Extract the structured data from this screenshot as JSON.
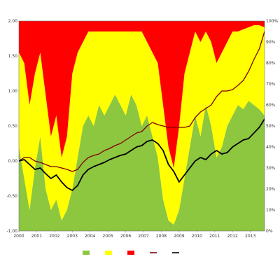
{
  "chart_data": {
    "type": "area",
    "title": "",
    "xlabel": "",
    "ylabel": "",
    "x_ticks": [
      "2000",
      "2001",
      "2002",
      "2003",
      "2004",
      "2005",
      "2006",
      "2007",
      "2008",
      "2009",
      "2010",
      "2011",
      "2012",
      "2013"
    ],
    "x_range": [
      2000.0,
      2013.8
    ],
    "y_left": {
      "range": [
        -1.0,
        2.0
      ],
      "ticks": [
        "-1.00",
        "-0.50",
        "0.00",
        "0.50",
        "1.00",
        "1.50",
        "2.00"
      ]
    },
    "y_right": {
      "range": [
        0,
        100
      ],
      "ticks": [
        "0%",
        "10%",
        "20%",
        "30%",
        "40%",
        "50%",
        "60%",
        "70%",
        "80%",
        "90%",
        "100%"
      ]
    },
    "grid": false,
    "legend_position": "bottom",
    "stacked_probability_regimes": {
      "note_axis": "right",
      "x": [
        2000.0,
        2000.3,
        2000.6,
        2000.9,
        2001.2,
        2001.5,
        2001.8,
        2002.1,
        2002.4,
        2002.7,
        2003.0,
        2003.3,
        2003.6,
        2003.9,
        2004.2,
        2004.5,
        2004.8,
        2005.1,
        2005.4,
        2005.7,
        2006.0,
        2006.3,
        2006.6,
        2006.9,
        2007.2,
        2007.5,
        2007.8,
        2008.1,
        2008.4,
        2008.7,
        2009.0,
        2009.3,
        2009.6,
        2009.9,
        2010.2,
        2010.5,
        2010.8,
        2011.1,
        2011.4,
        2011.7,
        2012.0,
        2012.3,
        2012.6,
        2012.9,
        2013.2,
        2013.5,
        2013.8
      ],
      "state1": [
        40,
        25,
        10,
        30,
        45,
        20,
        10,
        15,
        5,
        10,
        20,
        35,
        50,
        55,
        50,
        60,
        55,
        60,
        65,
        60,
        55,
        65,
        60,
        50,
        55,
        45,
        35,
        15,
        5,
        3,
        10,
        25,
        40,
        55,
        45,
        60,
        50,
        35,
        40,
        50,
        55,
        60,
        58,
        62,
        60,
        58,
        55
      ],
      "state2": [
        45,
        55,
        50,
        45,
        40,
        45,
        35,
        40,
        30,
        35,
        55,
        50,
        40,
        40,
        45,
        35,
        40,
        35,
        30,
        35,
        40,
        30,
        35,
        45,
        35,
        40,
        45,
        45,
        35,
        27,
        40,
        50,
        45,
        40,
        45,
        35,
        40,
        45,
        45,
        40,
        40,
        35,
        38,
        35,
        38,
        40,
        42
      ],
      "state3": [
        15,
        20,
        40,
        25,
        15,
        35,
        55,
        45,
        65,
        55,
        25,
        15,
        10,
        5,
        5,
        5,
        5,
        5,
        5,
        5,
        5,
        5,
        5,
        5,
        10,
        15,
        20,
        40,
        60,
        70,
        50,
        25,
        15,
        5,
        10,
        5,
        10,
        20,
        15,
        10,
        5,
        5,
        4,
        3,
        2,
        2,
        3
      ]
    },
    "series": [
      {
        "name": "",
        "axis": "left",
        "color": "#800000",
        "x": [
          2000.0,
          2000.3,
          2000.6,
          2000.9,
          2001.2,
          2001.5,
          2001.8,
          2002.1,
          2002.4,
          2002.7,
          2003.0,
          2003.3,
          2003.6,
          2003.9,
          2004.2,
          2004.5,
          2004.8,
          2005.1,
          2005.4,
          2005.7,
          2006.0,
          2006.3,
          2006.6,
          2006.9,
          2007.2,
          2007.5,
          2007.8,
          2008.1,
          2008.4,
          2008.7,
          2009.0,
          2009.3,
          2009.6,
          2009.9,
          2010.2,
          2010.5,
          2010.8,
          2011.1,
          2011.4,
          2011.7,
          2012.0,
          2012.3,
          2012.6,
          2012.9,
          2013.2,
          2013.5,
          2013.8
        ],
        "y": [
          0.0,
          0.05,
          0.05,
          0.0,
          -0.02,
          -0.05,
          -0.08,
          -0.08,
          -0.1,
          -0.12,
          -0.15,
          -0.12,
          -0.02,
          0.05,
          0.08,
          0.1,
          0.15,
          0.18,
          0.22,
          0.25,
          0.3,
          0.35,
          0.4,
          0.42,
          0.5,
          0.55,
          0.52,
          0.5,
          0.48,
          0.48,
          0.48,
          0.48,
          0.5,
          0.62,
          0.7,
          0.75,
          0.8,
          0.92,
          1.0,
          1.0,
          1.02,
          1.08,
          1.15,
          1.28,
          1.45,
          1.6,
          1.85
        ]
      },
      {
        "name": "",
        "axis": "left",
        "color": "#000000",
        "x": [
          2000.0,
          2000.3,
          2000.6,
          2000.9,
          2001.2,
          2001.5,
          2001.8,
          2002.1,
          2002.4,
          2002.7,
          2003.0,
          2003.3,
          2003.6,
          2003.9,
          2004.2,
          2004.5,
          2004.8,
          2005.1,
          2005.4,
          2005.7,
          2006.0,
          2006.3,
          2006.6,
          2006.9,
          2007.2,
          2007.5,
          2007.8,
          2008.1,
          2008.4,
          2008.7,
          2009.0,
          2009.3,
          2009.6,
          2009.9,
          2010.2,
          2010.5,
          2010.8,
          2011.1,
          2011.4,
          2011.7,
          2012.0,
          2012.3,
          2012.6,
          2012.9,
          2013.2,
          2013.5,
          2013.8
        ],
        "y": [
          0.0,
          0.02,
          -0.05,
          -0.12,
          -0.1,
          -0.18,
          -0.25,
          -0.2,
          -0.3,
          -0.38,
          -0.42,
          -0.35,
          -0.2,
          -0.12,
          -0.08,
          -0.05,
          -0.02,
          0.02,
          0.05,
          0.08,
          0.1,
          0.15,
          0.2,
          0.22,
          0.28,
          0.3,
          0.25,
          0.15,
          -0.05,
          -0.15,
          -0.3,
          -0.2,
          -0.1,
          0.0,
          0.05,
          0.02,
          0.1,
          0.15,
          0.1,
          0.12,
          0.2,
          0.25,
          0.3,
          0.32,
          0.4,
          0.48,
          0.6
        ]
      }
    ],
    "legend": [
      {
        "label": "",
        "type": "area",
        "color": "#8dc63f"
      },
      {
        "label": "",
        "type": "area",
        "color": "#ffff00"
      },
      {
        "label": "",
        "type": "area",
        "color": "#ff0000"
      },
      {
        "label": "",
        "type": "line",
        "color": "#800000"
      },
      {
        "label": "",
        "type": "line",
        "color": "#000000"
      }
    ]
  },
  "colors": {
    "state1": "#8dc63f",
    "state2": "#ffff00",
    "state3": "#ff0000",
    "line1": "#800000",
    "line2": "#000000"
  }
}
